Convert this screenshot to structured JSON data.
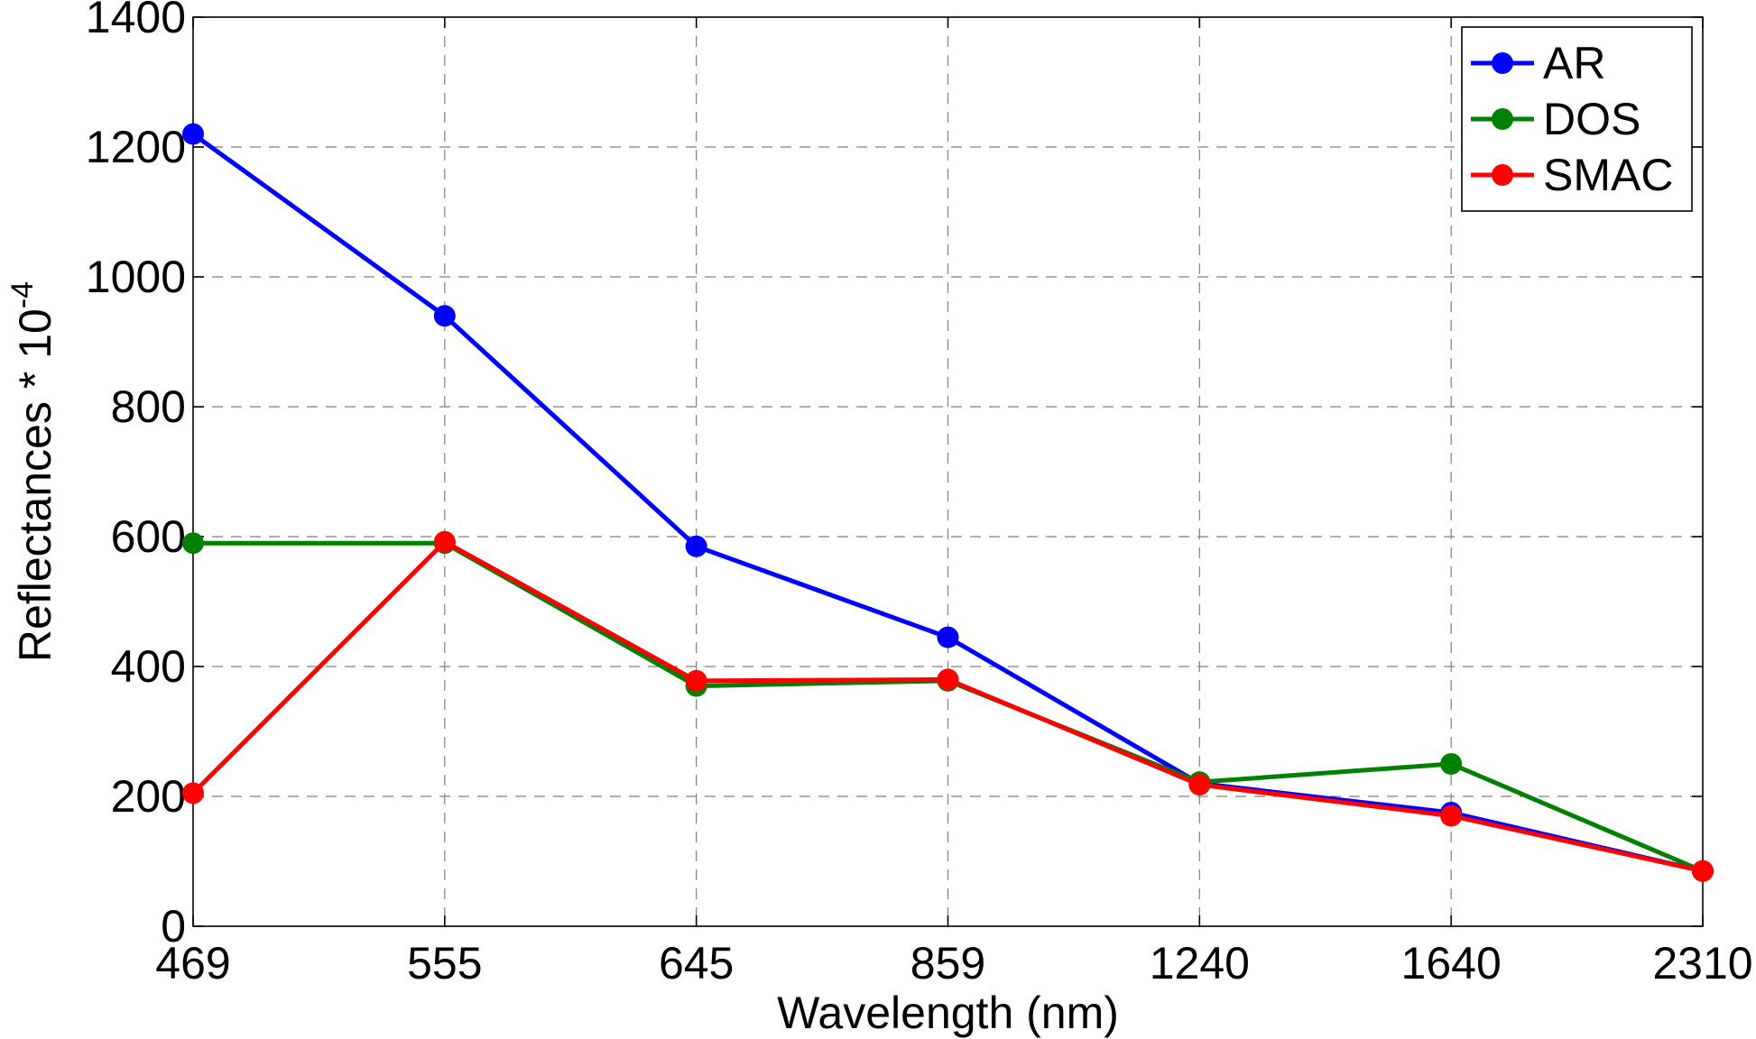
{
  "chart_data": {
    "type": "line",
    "categories": [
      "469",
      "555",
      "645",
      "859",
      "1240",
      "1640",
      "2310"
    ],
    "series": [
      {
        "name": "AR",
        "color": "#0000ff",
        "values": [
          1220,
          940,
          585,
          445,
          220,
          175,
          85
        ]
      },
      {
        "name": "DOS",
        "color": "#008000",
        "values": [
          590,
          590,
          370,
          378,
          222,
          250,
          85
        ]
      },
      {
        "name": "SMAC",
        "color": "#ff0000",
        "values": [
          205,
          592,
          378,
          380,
          218,
          170,
          85
        ]
      }
    ],
    "xlabel": "Wavelength (nm)",
    "ylabel": {
      "base": "Reflectances * 10",
      "exponent": "-4"
    },
    "ylim": [
      0,
      1400
    ],
    "yticks": [
      0,
      200,
      400,
      600,
      800,
      1000,
      1200,
      1400
    ],
    "grid": true,
    "legend_position": "top-right"
  }
}
